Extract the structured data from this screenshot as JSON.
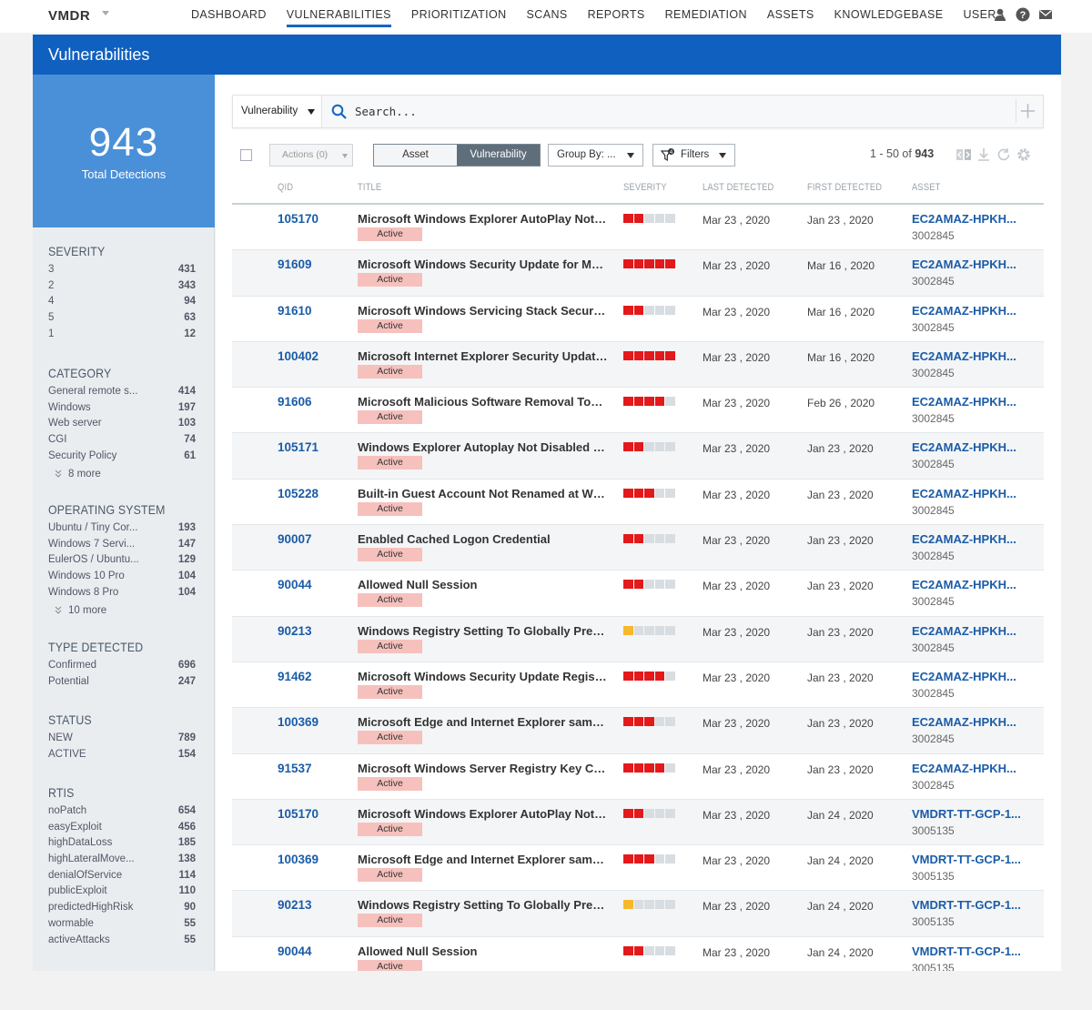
{
  "app": {
    "brand": "VMDR",
    "nav": [
      "DASHBOARD",
      "VULNERABILITIES",
      "PRIORITIZATION",
      "SCANS",
      "REPORTS",
      "REMEDIATION",
      "ASSETS",
      "KNOWLEDGEBASE",
      "USERS"
    ],
    "active_nav": "VULNERABILITIES",
    "icons": [
      "user-icon",
      "help-icon",
      "mail-icon"
    ]
  },
  "header": {
    "title": "Vulnerabilities"
  },
  "summary": {
    "total": "943",
    "label": "Total Detections"
  },
  "facets": {
    "severity": {
      "title": "SEVERITY",
      "items": [
        [
          "3",
          "431"
        ],
        [
          "2",
          "343"
        ],
        [
          "4",
          "94"
        ],
        [
          "5",
          "63"
        ],
        [
          "1",
          "12"
        ]
      ]
    },
    "category": {
      "title": "CATEGORY",
      "items": [
        [
          "General remote s...",
          "414"
        ],
        [
          "Windows",
          "197"
        ],
        [
          "Web server",
          "103"
        ],
        [
          "CGI",
          "74"
        ],
        [
          "Security Policy",
          "61"
        ]
      ],
      "more": "8 more"
    },
    "os": {
      "title": "OPERATING SYSTEM",
      "items": [
        [
          "Ubuntu / Tiny Cor...",
          "193"
        ],
        [
          "Windows 7 Servi...",
          "147"
        ],
        [
          "EulerOS / Ubuntu...",
          "129"
        ],
        [
          "Windows 10 Pro",
          "104"
        ],
        [
          "Windows 8 Pro",
          "104"
        ]
      ],
      "more": "10 more"
    },
    "type": {
      "title": "TYPE DETECTED",
      "items": [
        [
          "Confirmed",
          "696"
        ],
        [
          "Potential",
          "247"
        ]
      ]
    },
    "status": {
      "title": "STATUS",
      "items": [
        [
          "NEW",
          "789"
        ],
        [
          "ACTIVE",
          "154"
        ]
      ]
    },
    "rtis": {
      "title": "RTIS",
      "items": [
        [
          "noPatch",
          "654"
        ],
        [
          "easyExploit",
          "456"
        ],
        [
          "highDataLoss",
          "185"
        ],
        [
          "highLateralMove...",
          "138"
        ],
        [
          "denialOfService",
          "114"
        ],
        [
          "publicExploit",
          "110"
        ],
        [
          "predictedHighRisk",
          "90"
        ],
        [
          "wormable",
          "55"
        ],
        [
          "activeAttacks",
          "55"
        ]
      ]
    }
  },
  "search": {
    "scope": "Vulnerability",
    "placeholder": "Search..."
  },
  "toolbar": {
    "actions": "Actions (0)",
    "view_asset": "Asset",
    "view_vuln": "Vulnerability",
    "group_by": "Group By: ...",
    "filters": "Filters",
    "filter_count": "4",
    "paging_prefix": "1 - 50 of",
    "paging_total": "943"
  },
  "columns": [
    "QID",
    "TITLE",
    "SEVERITY",
    "LAST DETECTED",
    "FIRST DETECTED",
    "ASSET"
  ],
  "status_color": "#f6c1bd",
  "rows": [
    {
      "qid": "105170",
      "title": "Microsoft Windows Explorer AutoPlay Not D...",
      "status": "Active",
      "severity": 2,
      "sev_color": "red",
      "last": "Mar 23 , 2020",
      "first": "Jan 23 , 2020",
      "asset": "EC2AMAZ-HPKH...",
      "asset_id": "3002845"
    },
    {
      "qid": "91609",
      "title": "Microsoft Windows Security Update for Mar...",
      "status": "Active",
      "severity": 5,
      "sev_color": "red",
      "last": "Mar 23 , 2020",
      "first": "Mar 16 , 2020",
      "asset": "EC2AMAZ-HPKH...",
      "asset_id": "3002845"
    },
    {
      "qid": "91610",
      "title": "Microsoft Windows Servicing Stack Securit...",
      "status": "Active",
      "severity": 2,
      "sev_color": "red",
      "last": "Mar 23 , 2020",
      "first": "Mar 16 , 2020",
      "asset": "EC2AMAZ-HPKH...",
      "asset_id": "3002845"
    },
    {
      "qid": "100402",
      "title": "Microsoft Internet Explorer Security Update ...",
      "status": "Active",
      "severity": 5,
      "sev_color": "red",
      "last": "Mar 23 , 2020",
      "first": "Mar 16 , 2020",
      "asset": "EC2AMAZ-HPKH...",
      "asset_id": "3002845"
    },
    {
      "qid": "91606",
      "title": "Microsoft Malicious Software Removal Tool ...",
      "status": "Active",
      "severity": 4,
      "sev_color": "red",
      "last": "Mar 23 , 2020",
      "first": "Feb 26 , 2020",
      "asset": "EC2AMAZ-HPKH...",
      "asset_id": "3002845"
    },
    {
      "qid": "105171",
      "title": "Windows Explorer Autoplay Not Disabled for...",
      "status": "Active",
      "severity": 2,
      "sev_color": "red",
      "last": "Mar 23 , 2020",
      "first": "Jan 23 , 2020",
      "asset": "EC2AMAZ-HPKH...",
      "asset_id": "3002845"
    },
    {
      "qid": "105228",
      "title": "Built-in Guest Account Not Renamed at Win...",
      "status": "Active",
      "severity": 3,
      "sev_color": "red",
      "last": "Mar 23 , 2020",
      "first": "Jan 23 , 2020",
      "asset": "EC2AMAZ-HPKH...",
      "asset_id": "3002845"
    },
    {
      "qid": "90007",
      "title": "Enabled Cached Logon Credential",
      "status": "Active",
      "severity": 2,
      "sev_color": "red",
      "last": "Mar 23 , 2020",
      "first": "Jan 23 , 2020",
      "asset": "EC2AMAZ-HPKH...",
      "asset_id": "3002845"
    },
    {
      "qid": "90044",
      "title": "Allowed Null Session",
      "status": "Active",
      "severity": 2,
      "sev_color": "red",
      "last": "Mar 23 , 2020",
      "first": "Jan 23 , 2020",
      "asset": "EC2AMAZ-HPKH...",
      "asset_id": "3002845"
    },
    {
      "qid": "90213",
      "title": "Windows Registry Setting To Globally Preve...",
      "status": "Active",
      "severity": 1,
      "sev_color": "yellow",
      "last": "Mar 23 , 2020",
      "first": "Jan 23 , 2020",
      "asset": "EC2AMAZ-HPKH...",
      "asset_id": "3002845"
    },
    {
      "qid": "91462",
      "title": "Microsoft Windows Security Update Registr...",
      "status": "Active",
      "severity": 4,
      "sev_color": "red",
      "last": "Mar 23 , 2020",
      "first": "Jan 23 , 2020",
      "asset": "EC2AMAZ-HPKH...",
      "asset_id": "3002845"
    },
    {
      "qid": "100369",
      "title": "Microsoft Edge and Internet Explorer same-...",
      "status": "Active",
      "severity": 3,
      "sev_color": "red",
      "last": "Mar 23 , 2020",
      "first": "Jan 23 , 2020",
      "asset": "EC2AMAZ-HPKH...",
      "asset_id": "3002845"
    },
    {
      "qid": "91537",
      "title": "Microsoft Windows Server Registry Key Con...",
      "status": "Active",
      "severity": 4,
      "sev_color": "red",
      "last": "Mar 23 , 2020",
      "first": "Jan 23 , 2020",
      "asset": "EC2AMAZ-HPKH...",
      "asset_id": "3002845"
    },
    {
      "qid": "105170",
      "title": "Microsoft Windows Explorer AutoPlay Not D...",
      "status": "Active",
      "severity": 2,
      "sev_color": "red",
      "last": "Mar 23 , 2020",
      "first": "Jan 24 , 2020",
      "asset": "VMDRT-TT-GCP-1...",
      "asset_id": "3005135"
    },
    {
      "qid": "100369",
      "title": "Microsoft Edge and Internet Explorer same-...",
      "status": "Active",
      "severity": 3,
      "sev_color": "red",
      "last": "Mar 23 , 2020",
      "first": "Jan 24 , 2020",
      "asset": "VMDRT-TT-GCP-1...",
      "asset_id": "3005135"
    },
    {
      "qid": "90213",
      "title": "Windows Registry Setting To Globally Preve...",
      "status": "Active",
      "severity": 1,
      "sev_color": "yellow",
      "last": "Mar 23 , 2020",
      "first": "Jan 24 , 2020",
      "asset": "VMDRT-TT-GCP-1...",
      "asset_id": "3005135"
    },
    {
      "qid": "90044",
      "title": "Allowed Null Session",
      "status": "Active",
      "severity": 2,
      "sev_color": "red",
      "last": "Mar 23 , 2020",
      "first": "Jan 24 , 2020",
      "asset": "VMDRT-TT-GCP-1...",
      "asset_id": "3005135"
    }
  ]
}
